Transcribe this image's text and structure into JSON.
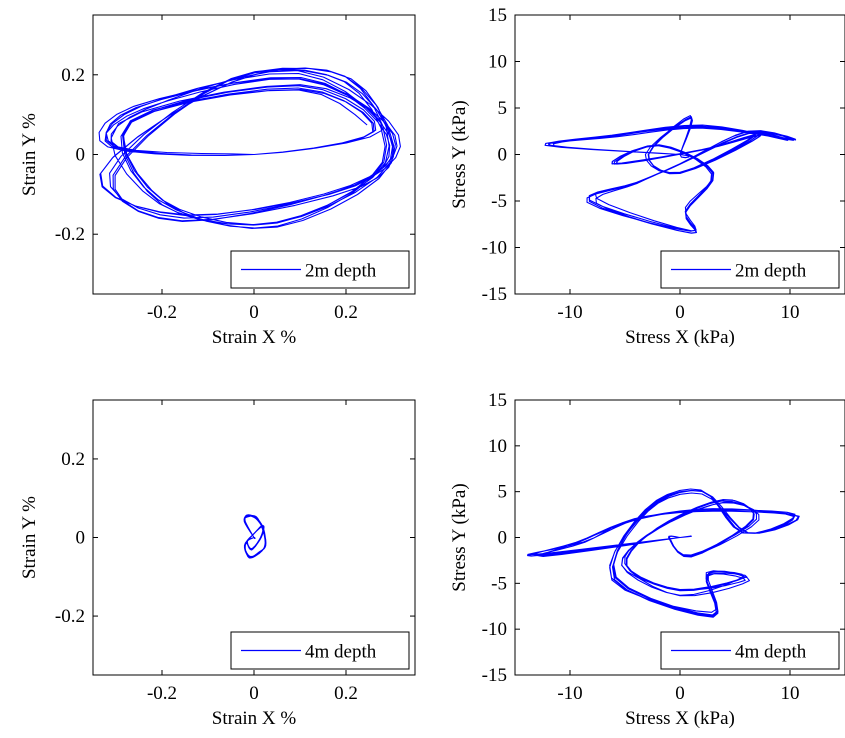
{
  "figure": {
    "layout": "2x2 grid",
    "line_color": "#0000ff"
  },
  "chart_data": [
    {
      "type": "line",
      "title": "",
      "xlabel": "Strain X %",
      "ylabel": "Strain Y %",
      "xlim": [
        -0.35,
        0.35
      ],
      "ylim": [
        -0.35,
        0.35
      ],
      "xticks": [
        -0.2,
        0,
        0.2
      ],
      "yticks": [
        -0.2,
        0,
        0.2
      ],
      "xtick_labels": [
        "-0.2",
        "0",
        "0.2"
      ],
      "ytick_labels": [
        "-0.2",
        "0",
        "0.2"
      ],
      "legend": {
        "entries": [
          "2m depth"
        ],
        "placement": "bottom-right"
      },
      "grid": false,
      "series": [
        {
          "name": "2m depth",
          "color": "#0000ff",
          "description": "orbit-like strain path, roughly elliptical loops",
          "x": [
            0,
            -0.3,
            -0.25,
            0.1,
            0.3,
            0.22,
            -0.15,
            -0.32,
            -0.05,
            0.2,
            0.29,
            0.05,
            -0.2,
            -0.28,
            0.1,
            0.27
          ],
          "y": [
            0,
            0.02,
            0.12,
            0.2,
            0.05,
            -0.08,
            -0.16,
            -0.05,
            0.18,
            0.19,
            -0.02,
            -0.18,
            -0.12,
            0.08,
            0.17,
            0.06
          ]
        }
      ]
    },
    {
      "type": "line",
      "title": "",
      "xlabel": "Stress X (kPa)",
      "ylabel": "Stress Y (kPa)",
      "xlim": [
        -15,
        15
      ],
      "ylim": [
        -15,
        15
      ],
      "xticks": [
        -10,
        0,
        10
      ],
      "yticks": [
        -15,
        -10,
        -5,
        0,
        5,
        10,
        15
      ],
      "xtick_labels": [
        "-10",
        "0",
        "10"
      ],
      "ytick_labels": [
        "-15",
        "-10",
        "-5",
        "0",
        "5",
        "10",
        "15"
      ],
      "legend": {
        "entries": [
          "2m depth"
        ],
        "placement": "bottom-right"
      },
      "grid": false,
      "series": [
        {
          "name": "2m depth",
          "color": "#0000ff",
          "description": "irregular stress path, mostly within x -12..10 kPa and y -8.5..4 kPa",
          "x": [
            0,
            -12,
            -6,
            2,
            10,
            6,
            0,
            -4,
            -8,
            1,
            0.5,
            3,
            -2,
            -6,
            2,
            7,
            0,
            -3,
            1,
            0
          ],
          "y": [
            0,
            1,
            2,
            3,
            1.6,
            2.4,
            -1,
            -3,
            -5,
            -8.5,
            -6,
            -2,
            1,
            -1,
            0.5,
            2,
            -2,
            0,
            4,
            0
          ]
        }
      ]
    },
    {
      "type": "line",
      "title": "",
      "xlabel": "Strain X %",
      "ylabel": "Strain Y %",
      "xlim": [
        -0.35,
        0.35
      ],
      "ylim": [
        -0.35,
        0.35
      ],
      "xticks": [
        -0.2,
        0,
        0.2
      ],
      "yticks": [
        -0.2,
        0,
        0.2
      ],
      "xtick_labels": [
        "-0.2",
        "0",
        "0.2"
      ],
      "ytick_labels": [
        "-0.2",
        "0",
        "0.2"
      ],
      "legend": {
        "entries": [
          "4m depth"
        ],
        "placement": "bottom-right"
      },
      "grid": false,
      "series": [
        {
          "name": "4m depth",
          "color": "#0000ff",
          "description": "small tight loop near origin",
          "x": [
            0,
            -0.02,
            -0.015,
            0.005,
            0.02,
            0.025,
            0.01,
            -0.01,
            -0.02,
            0.0,
            0.02,
            0.015,
            -0.005,
            -0.015,
            0.0
          ],
          "y": [
            0,
            0.04,
            0.055,
            0.05,
            0.02,
            -0.02,
            -0.04,
            -0.05,
            -0.02,
            0.01,
            0.03,
            0.0,
            -0.03,
            -0.01,
            0.0
          ]
        }
      ]
    },
    {
      "type": "line",
      "title": "",
      "xlabel": "Stress X (kPa)",
      "ylabel": "Stress Y (kPa)",
      "xlim": [
        -15,
        15
      ],
      "ylim": [
        -15,
        15
      ],
      "xticks": [
        -10,
        0,
        10
      ],
      "yticks": [
        -15,
        -10,
        -5,
        0,
        5,
        10,
        15
      ],
      "xtick_labels": [
        "-10",
        "0",
        "10"
      ],
      "ytick_labels": [
        "-15",
        "-10",
        "-5",
        "0",
        "5",
        "10",
        "15"
      ],
      "legend": {
        "entries": [
          "4m depth"
        ],
        "placement": "bottom-right"
      },
      "grid": false,
      "series": [
        {
          "name": "4m depth",
          "color": "#0000ff",
          "description": "irregular stress path, x about -13..10.5 kPa, y about -8.5..5 kPa",
          "x": [
            0,
            -13,
            -9,
            -4,
            3,
            10.5,
            6,
            2,
            -3,
            -6,
            3,
            2.5,
            6,
            0,
            -5,
            -2,
            4,
            7,
            1,
            -1,
            0
          ],
          "y": [
            0,
            -2,
            -0.5,
            2,
            3,
            2.4,
            0.5,
            5,
            3,
            -4.5,
            -8.5,
            -4,
            -4.5,
            -6,
            -3,
            1,
            4,
            2,
            -2,
            0,
            0
          ]
        }
      ]
    }
  ]
}
